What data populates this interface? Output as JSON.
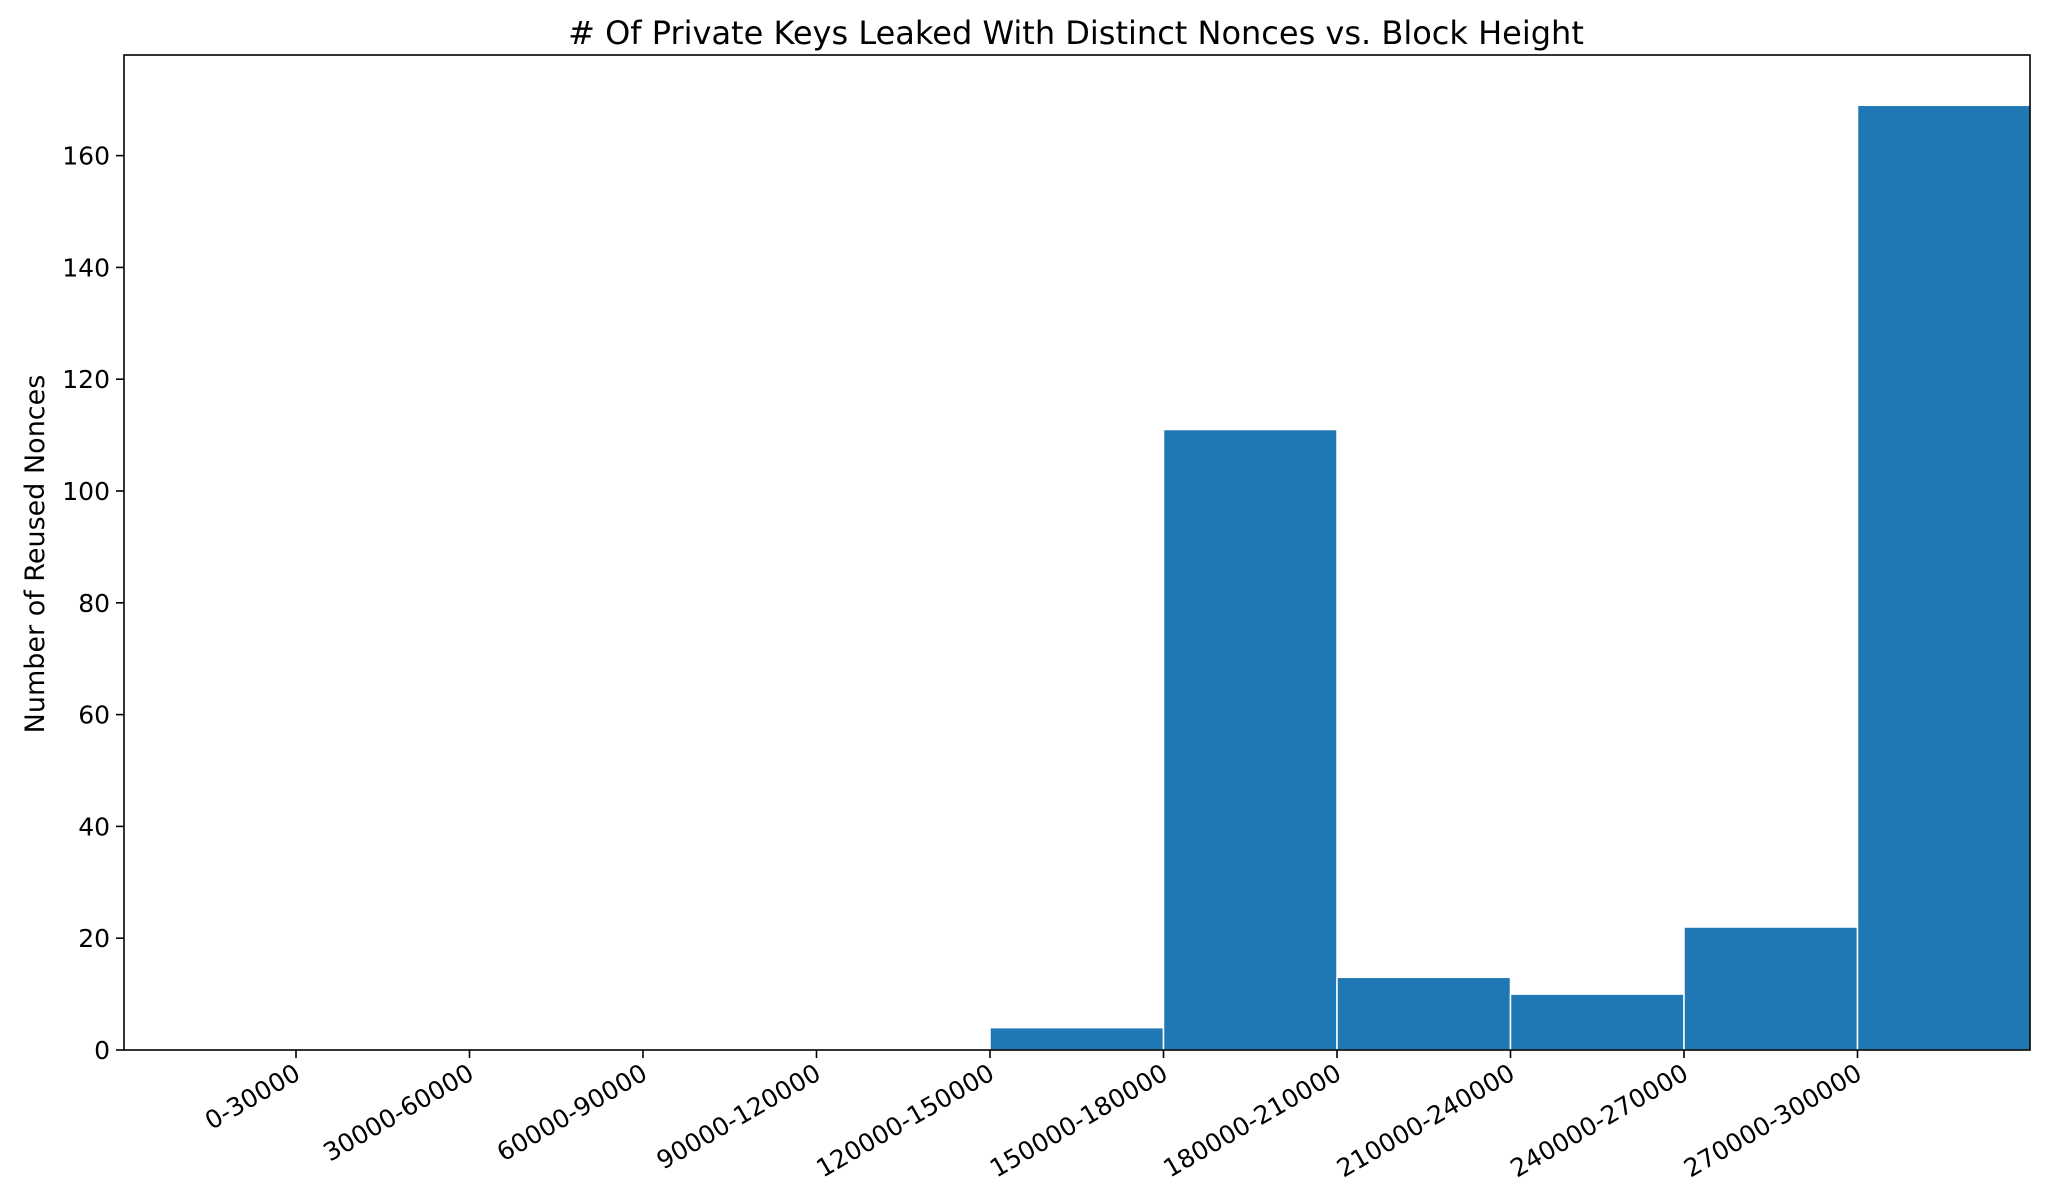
{
  "chart_data": {
    "type": "bar",
    "title": "# Of Private Keys Leaked With Distinct Nonces vs. Block Height",
    "xlabel": "",
    "ylabel": "Number of Reused Nonces",
    "categories": [
      "0-30000",
      "30000-60000",
      "60000-90000",
      "90000-120000",
      "120000-150000",
      "150000-180000",
      "180000-210000",
      "210000-240000",
      "240000-270000",
      "270000-300000"
    ],
    "values": [
      0,
      0,
      0,
      0,
      4,
      111,
      13,
      10,
      22,
      169
    ],
    "ylim": [
      0,
      178
    ],
    "yticks": [
      0,
      20,
      40,
      60,
      80,
      100,
      120,
      140,
      160
    ],
    "bar_color": "#1f77b4",
    "grid": false,
    "legend": "none"
  }
}
